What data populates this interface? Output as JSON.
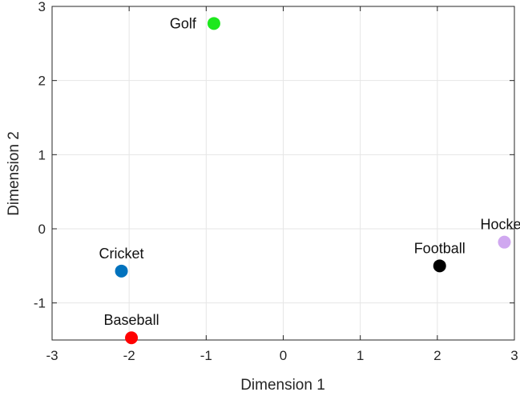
{
  "chart_data": {
    "type": "scatter",
    "title": "",
    "xlabel": "Dimension 1",
    "ylabel": "Dimension 2",
    "xlim": [
      -3,
      3
    ],
    "ylim": [
      -1.5,
      3
    ],
    "xticks": [
      -3,
      -2,
      -1,
      0,
      1,
      2,
      3
    ],
    "yticks": [
      -1,
      0,
      1,
      2,
      3
    ],
    "grid": true,
    "points": [
      {
        "label": "Golf",
        "x": -0.9,
        "y": 2.77,
        "color": "#1ee81e",
        "label_position": "left"
      },
      {
        "label": "Cricket",
        "x": -2.1,
        "y": -0.57,
        "color": "#0072bd",
        "label_position": "above"
      },
      {
        "label": "Baseball",
        "x": -1.97,
        "y": -1.47,
        "color": "#ff0000",
        "label_position": "above"
      },
      {
        "label": "Football",
        "x": 2.03,
        "y": -0.5,
        "color": "#000000",
        "label_position": "above"
      },
      {
        "label": "Hockey",
        "x": 2.87,
        "y": -0.18,
        "color": "#d0a8f0",
        "label_position": "above"
      }
    ]
  }
}
